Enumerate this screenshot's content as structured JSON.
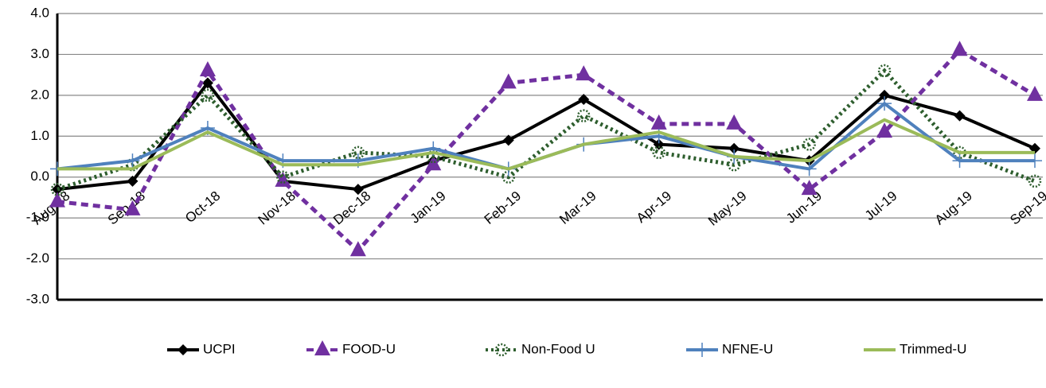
{
  "chart_data": {
    "type": "line",
    "categories": [
      "Aug-18",
      "Sep-18",
      "Oct-18",
      "Nov-18",
      "Dec-18",
      "Jan-19",
      "Feb-19",
      "Mar-19",
      "Apr-19",
      "May-19",
      "Jun-19",
      "Jul-19",
      "Aug-19",
      "Sep-19"
    ],
    "series": [
      {
        "name": "UCPI",
        "color": "#000000",
        "marker": "diamond",
        "dash": "solid",
        "values": [
          -0.3,
          -0.1,
          2.3,
          -0.1,
          -0.3,
          0.4,
          0.9,
          1.9,
          0.8,
          0.7,
          0.4,
          2.0,
          1.5,
          0.7
        ]
      },
      {
        "name": "FOOD-U",
        "color": "#7030a0",
        "marker": "triangle",
        "dash": "dashed",
        "values": [
          -0.6,
          -0.8,
          2.6,
          -0.1,
          -1.8,
          0.3,
          2.3,
          2.5,
          1.3,
          1.3,
          -0.3,
          1.1,
          3.1,
          2.0
        ]
      },
      {
        "name": "Non-Food U",
        "color": "#2e5e2e",
        "marker": "circle",
        "dash": "dotted",
        "values": [
          -0.3,
          0.3,
          2.0,
          0.0,
          0.6,
          0.5,
          0.0,
          1.5,
          0.6,
          0.3,
          0.8,
          2.6,
          0.6,
          -0.1
        ]
      },
      {
        "name": "NFNE-U",
        "color": "#4f81bd",
        "marker": "plus",
        "dash": "solid",
        "values": [
          0.2,
          0.4,
          1.2,
          0.4,
          0.4,
          0.7,
          0.2,
          0.8,
          1.0,
          0.5,
          0.2,
          1.8,
          0.4,
          0.4
        ]
      },
      {
        "name": "Trimmed-U",
        "color": "#9bbb59",
        "marker": "none",
        "dash": "solid",
        "values": [
          0.2,
          0.2,
          1.1,
          0.3,
          0.3,
          0.6,
          0.2,
          0.8,
          1.1,
          0.5,
          0.4,
          1.4,
          0.6,
          0.6
        ]
      }
    ],
    "ylim": [
      -3,
      4
    ],
    "yticks": [
      {
        "value": 4,
        "label": "4.0"
      },
      {
        "value": 3,
        "label": "3.0"
      },
      {
        "value": 2,
        "label": "2.0"
      },
      {
        "value": 1,
        "label": "1.0"
      },
      {
        "value": 0,
        "label": "0.0"
      },
      {
        "value": -1,
        "label": "-1.0"
      },
      {
        "value": -2,
        "label": "-2.0"
      },
      {
        "value": -3,
        "label": "-3.0"
      }
    ],
    "grid": true,
    "legend": "bottom"
  }
}
